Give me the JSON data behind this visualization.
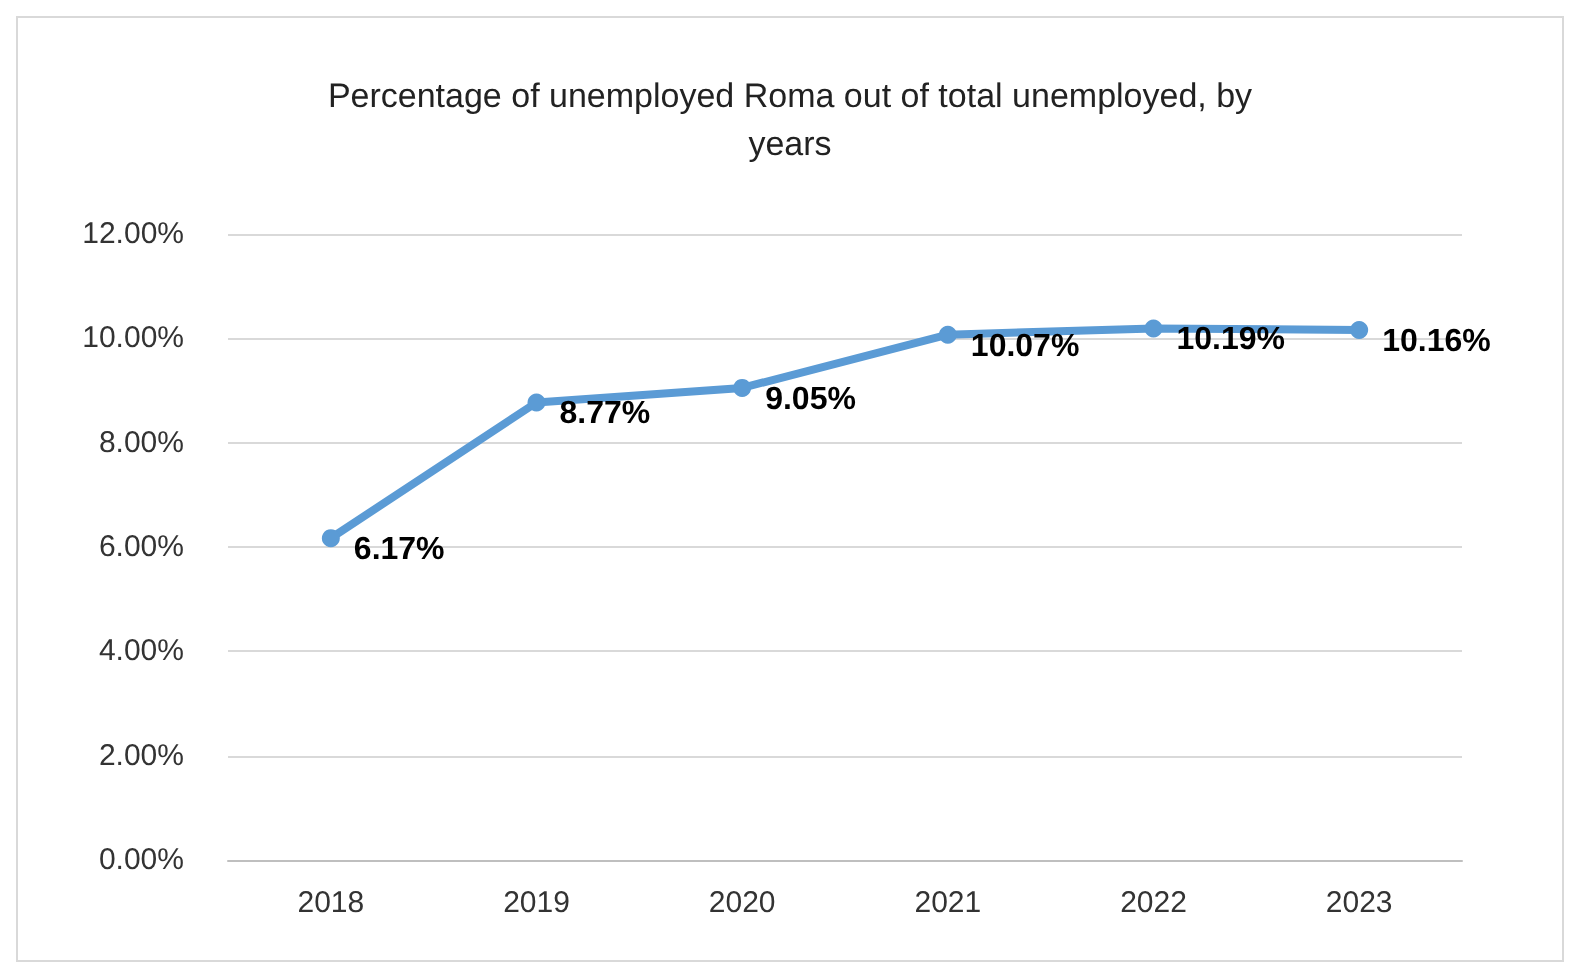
{
  "chart_data": {
    "type": "line",
    "title": "Percentage of unemployed Roma out of total unemployed, by\nyears",
    "categories": [
      "2018",
      "2019",
      "2020",
      "2021",
      "2022",
      "2023"
    ],
    "values": [
      6.17,
      8.77,
      9.05,
      10.07,
      10.19,
      10.16
    ],
    "value_labels": [
      "6.17%",
      "8.77%",
      "9.05%",
      "10.07%",
      "10.19%",
      "10.16%"
    ],
    "color": "#5b9bd5",
    "marker": "circle",
    "line_style": "solid",
    "grid": "y",
    "ylim": [
      0,
      12
    ],
    "yticks": [
      {
        "value": 0,
        "label": "0.00%"
      },
      {
        "value": 2,
        "label": "2.00%"
      },
      {
        "value": 4,
        "label": "4.00%"
      },
      {
        "value": 6,
        "label": "6.00%"
      },
      {
        "value": 8,
        "label": "8.00%"
      },
      {
        "value": 10,
        "label": "10.00%"
      },
      {
        "value": 12,
        "label": "12.00%"
      }
    ]
  }
}
